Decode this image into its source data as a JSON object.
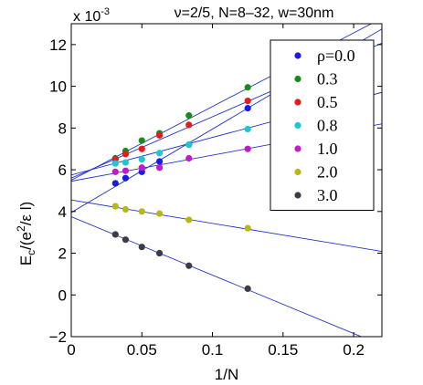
{
  "chart_data": {
    "type": "scatter",
    "title": "ν=2/5, N=8–32, w=30nm",
    "xlabel": "1/N",
    "ylabel": "E_c/(e²/εl)",
    "exponent_label": "x 10",
    "exponent_power": "-3",
    "xlim": [
      0,
      0.22
    ],
    "ylim": [
      -2,
      13
    ],
    "xticks": [
      0,
      0.05,
      0.1,
      0.15,
      0.2
    ],
    "xtick_labels": [
      "0",
      "0.05",
      "0.1",
      "0.15",
      "0.2"
    ],
    "yticks": [
      -2,
      0,
      2,
      4,
      6,
      8,
      10,
      12
    ],
    "ytick_labels": [
      "−2",
      "0",
      "2",
      "4",
      "6",
      "8",
      "10",
      "12"
    ],
    "grid": false,
    "legend_position": "top-right",
    "series": [
      {
        "name": "ρ=0.0",
        "color": "#1a1ae6",
        "x": [
          0.03125,
          0.03846,
          0.05,
          0.0625,
          0.08333,
          0.125
        ],
        "y": [
          5.35,
          5.6,
          5.9,
          6.4,
          7.2,
          8.95
        ],
        "fit": [
          3.95,
          40.0
        ]
      },
      {
        "name": "0.3",
        "color": "#1a8a1a",
        "x": [
          0.03125,
          0.03846,
          0.05,
          0.0625,
          0.08333,
          0.125
        ],
        "y": [
          6.55,
          6.9,
          7.4,
          7.75,
          8.6,
          9.95
        ],
        "fit": [
          5.5,
          35.3
        ]
      },
      {
        "name": "0.5",
        "color": "#e61a1a",
        "x": [
          0.03125,
          0.03846,
          0.05,
          0.0625,
          0.08333,
          0.125
        ],
        "y": [
          6.5,
          6.75,
          7.0,
          7.65,
          8.15,
          9.3
        ],
        "fit": [
          5.6,
          29.4
        ]
      },
      {
        "name": "0.8",
        "color": "#1ac8d2",
        "x": [
          0.03125,
          0.03846,
          0.05,
          0.0625,
          0.08333,
          0.125
        ],
        "y": [
          6.3,
          6.35,
          6.5,
          6.8,
          7.2,
          7.95
        ],
        "fit": [
          5.75,
          18.0
        ]
      },
      {
        "name": "1.0",
        "color": "#c21ac8",
        "x": [
          0.03125,
          0.03846,
          0.05,
          0.0625,
          0.08333,
          0.125
        ],
        "y": [
          5.9,
          5.95,
          6.1,
          6.1,
          6.55,
          7.0
        ],
        "fit": [
          5.45,
          12.5
        ]
      },
      {
        "name": "2.0",
        "color": "#b8b814",
        "x": [
          0.03125,
          0.03846,
          0.05,
          0.0625,
          0.08333,
          0.125
        ],
        "y": [
          4.25,
          4.1,
          4.0,
          3.9,
          3.6,
          3.2
        ],
        "fit": [
          4.55,
          -11.2
        ]
      },
      {
        "name": "3.0",
        "color": "#3c3c46",
        "x": [
          0.03125,
          0.03846,
          0.05,
          0.0625,
          0.08333,
          0.125
        ],
        "y": [
          2.9,
          2.65,
          2.3,
          2.0,
          1.4,
          0.3
        ],
        "fit": [
          3.75,
          -28.0
        ]
      }
    ]
  }
}
